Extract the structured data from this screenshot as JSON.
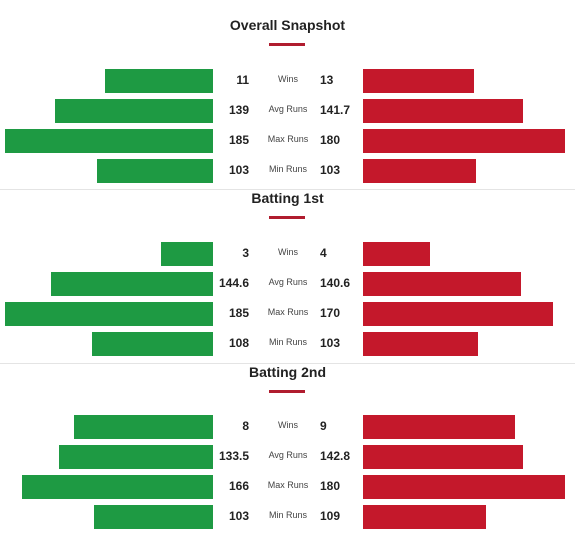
{
  "colors": {
    "left_bar": "#1e9a43",
    "right_bar": "#c4182b",
    "accent_underline": "#b01c2e"
  },
  "sections": [
    {
      "title": "Overall Snapshot",
      "rows": [
        {
          "metric": "Wins",
          "left": "11",
          "right": "13",
          "left_fill": 0.52,
          "right_fill": 0.55
        },
        {
          "metric": "Avg Runs",
          "left": "139",
          "right": "141.7",
          "left_fill": 0.76,
          "right_fill": 0.79
        },
        {
          "metric": "Max Runs",
          "left": "185",
          "right": "180",
          "left_fill": 1.0,
          "right_fill": 1.0
        },
        {
          "metric": "Min Runs",
          "left": "103",
          "right": "103",
          "left_fill": 0.56,
          "right_fill": 0.56
        }
      ]
    },
    {
      "title": "Batting 1st",
      "rows": [
        {
          "metric": "Wins",
          "left": "3",
          "right": "4",
          "left_fill": 0.25,
          "right_fill": 0.33
        },
        {
          "metric": "Avg Runs",
          "left": "144.6",
          "right": "140.6",
          "left_fill": 0.78,
          "right_fill": 0.78
        },
        {
          "metric": "Max Runs",
          "left": "185",
          "right": "170",
          "left_fill": 1.0,
          "right_fill": 0.94
        },
        {
          "metric": "Min Runs",
          "left": "108",
          "right": "103",
          "left_fill": 0.58,
          "right_fill": 0.57
        }
      ]
    },
    {
      "title": "Batting 2nd",
      "rows": [
        {
          "metric": "Wins",
          "left": "8",
          "right": "9",
          "left_fill": 0.67,
          "right_fill": 0.75
        },
        {
          "metric": "Avg Runs",
          "left": "133.5",
          "right": "142.8",
          "left_fill": 0.74,
          "right_fill": 0.79
        },
        {
          "metric": "Max Runs",
          "left": "166",
          "right": "180",
          "left_fill": 0.92,
          "right_fill": 1.0
        },
        {
          "metric": "Min Runs",
          "left": "103",
          "right": "109",
          "left_fill": 0.57,
          "right_fill": 0.61
        }
      ]
    }
  ]
}
